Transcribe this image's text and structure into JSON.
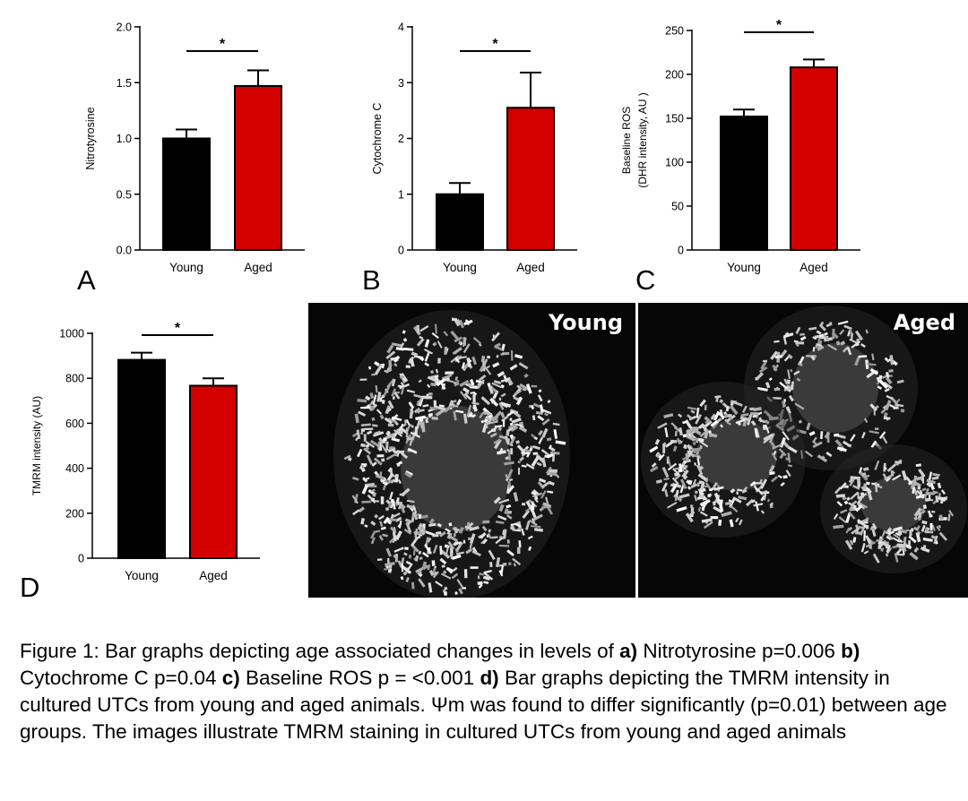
{
  "chart_data": [
    {
      "type": "bar",
      "panel": "A",
      "categories": [
        "Young",
        "Aged"
      ],
      "values": [
        1.0,
        1.47
      ],
      "errors": [
        0.08,
        0.14
      ],
      "ylabel": "Nitrotyrosine",
      "ylim": [
        0,
        2.0
      ],
      "yticks": [
        "0.0",
        "0.5",
        "1.0",
        "1.5",
        "2.0"
      ],
      "significance": "*",
      "bar_colors": [
        "#000000",
        "#d40000"
      ]
    },
    {
      "type": "bar",
      "panel": "B",
      "categories": [
        "Young",
        "Aged"
      ],
      "values": [
        1.0,
        2.55
      ],
      "errors": [
        0.2,
        0.63
      ],
      "ylabel": "Cytochrome C",
      "ylim": [
        0,
        4
      ],
      "yticks": [
        "0",
        "1",
        "2",
        "3",
        "4"
      ],
      "significance": "*",
      "bar_colors": [
        "#000000",
        "#d40000"
      ]
    },
    {
      "type": "bar",
      "panel": "C",
      "categories": [
        "Young",
        "Aged"
      ],
      "values": [
        152,
        208
      ],
      "errors": [
        8,
        9
      ],
      "ylabel": "Baseline ROS",
      "ylabel2": "(DHR intensity, AU )",
      "ylim": [
        0,
        250
      ],
      "yticks": [
        "0",
        "50",
        "100",
        "150",
        "200",
        "250"
      ],
      "significance": "*",
      "bar_colors": [
        "#000000",
        "#d40000"
      ]
    },
    {
      "type": "bar",
      "panel": "D",
      "categories": [
        "Young",
        "Aged"
      ],
      "values": [
        882,
        767
      ],
      "errors": [
        32,
        33
      ],
      "ylabel": "TMRM intensity (AU)",
      "ylim": [
        0,
        1000
      ],
      "yticks": [
        "0",
        "200",
        "400",
        "600",
        "800",
        "1000"
      ],
      "significance": "*",
      "bar_colors": [
        "#000000",
        "#d40000"
      ]
    }
  ],
  "images": {
    "young_label": "Young",
    "aged_label": "Aged"
  },
  "caption": {
    "s1": "Figure 1: Bar graphs depicting age associated changes in levels of ",
    "b1": "a)",
    "s2": " Nitrotyrosine p=0.006 ",
    "b2": "b)",
    "s3": " Cytochrome C p=0.04 ",
    "b3": "c)",
    "s4": " Baseline ROS p = <0.001 ",
    "b4": "d)",
    "s5": " Bar graphs depicting the TMRM intensity in cultured UTCs from young and aged animals. Ψm was found to differ significantly (p=0.01) between age groups. The images illustrate TMRM staining in cultured UTCs from young and aged animals"
  }
}
